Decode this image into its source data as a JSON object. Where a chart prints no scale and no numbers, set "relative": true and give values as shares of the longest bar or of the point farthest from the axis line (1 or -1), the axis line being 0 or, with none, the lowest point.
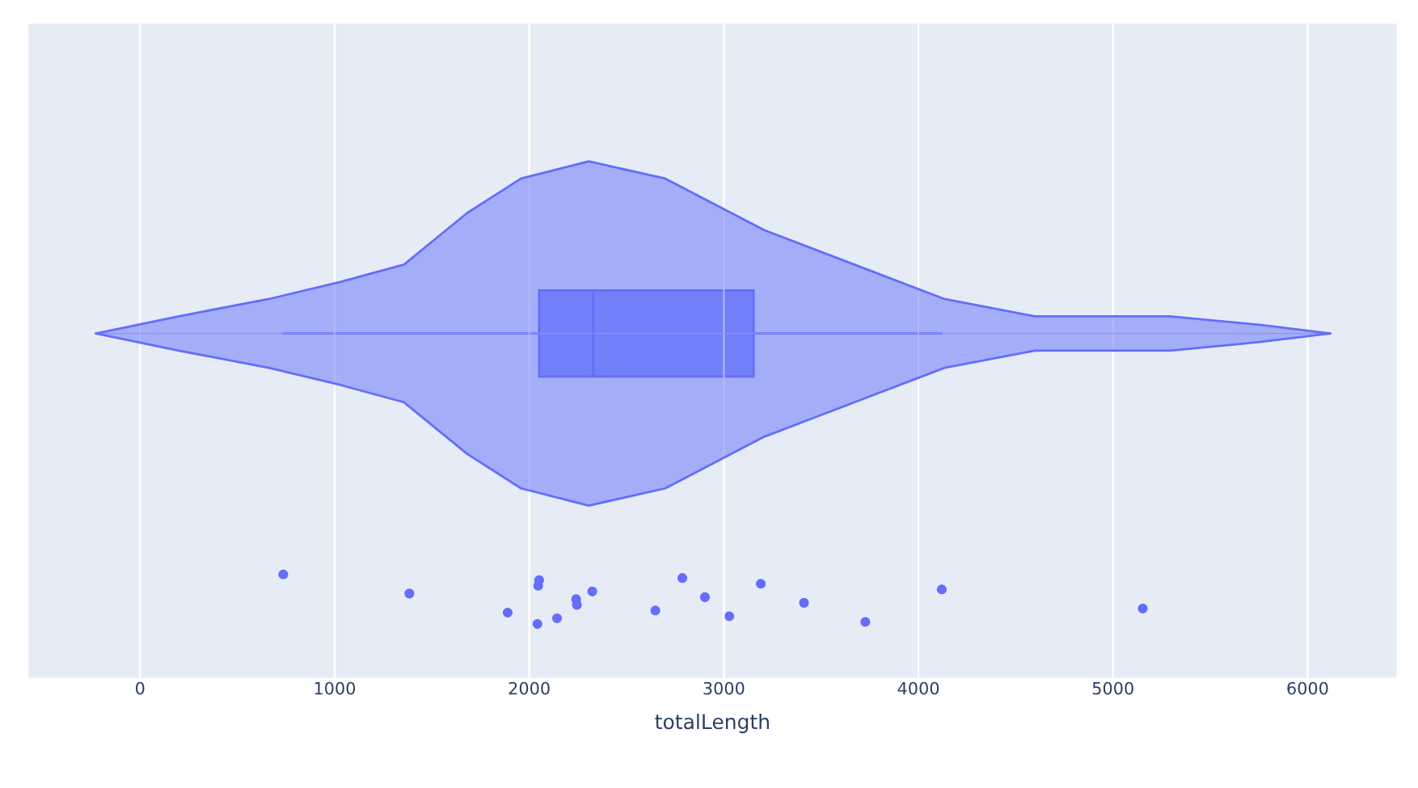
{
  "chart_data": [
    {
      "type": "area",
      "relative": true,
      "xlim": [
        -574,
        6458
      ],
      "xticks": [
        0,
        1000,
        2000,
        3000,
        4000,
        5000,
        6000
      ],
      "tick_labels": false,
      "grid": "x",
      "x": [
        -227,
        199,
        662,
        1032,
        1356,
        1681,
        1958,
        2306,
        2699,
        3208,
        3671,
        4134,
        4597,
        4829,
        5292,
        5755,
        6116
      ],
      "series": [
        {
          "color": "#636efa",
          "values": [
            0,
            0.1,
            0.2,
            0.3,
            0.4,
            0.7,
            0.9,
            1,
            0.9,
            0.6,
            0.4,
            0.2,
            0.1,
            0.1,
            0.1,
            0.05,
            0
          ]
        },
        {
          "color": "#636efa",
          "values": [
            0,
            -0.1,
            -0.2,
            -0.3,
            -0.4,
            -0.7,
            -0.9,
            -1,
            -0.9,
            -0.6,
            -0.4,
            -0.2,
            -0.1,
            -0.1,
            -0.1,
            -0.05,
            0
          ]
        }
      ]
    },
    {
      "type": "box",
      "orientation": "horizontal",
      "categories": [
        null
      ],
      "xlabel": "totalLength",
      "xlim": [
        -574,
        6458
      ],
      "xticks": [
        0,
        1000,
        2000,
        3000,
        4000,
        5000,
        6000
      ],
      "grid": "x",
      "tick_labels": "x",
      "boxes": [
        {
          "low": 736,
          "q1": 2051,
          "median": 2329,
          "q3": 3153,
          "high": 4120
        }
      ],
      "series": [
        {
          "type": "scatter",
          "color": "#636efa",
          "marker": "circle",
          "x": [
            null,
            null,
            null,
            null,
            null,
            null,
            null,
            null,
            null,
            null,
            null,
            null,
            null,
            null,
            null,
            null,
            null,
            null,
            null
          ],
          "values": [
            736,
            1384,
            1889,
            2051,
            2241,
            2143,
            2046,
            2245,
            2042,
            2324,
            2648,
            2787,
            2903,
            3028,
            3190,
            3412,
            3727,
            4120,
            5153
          ]
        }
      ]
    }
  ]
}
